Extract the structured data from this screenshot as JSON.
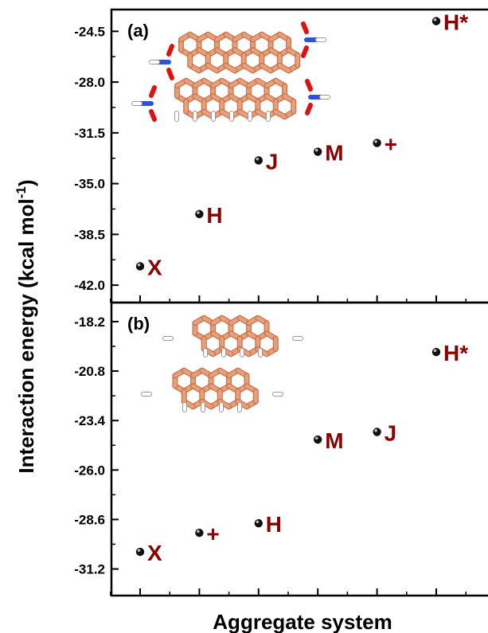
{
  "chart_data": [
    {
      "type": "scatter",
      "panel_label": "(a)",
      "ylim": [
        -43.2,
        -23.0
      ],
      "yticks": [
        "-24.5",
        "-28.0",
        "-31.5",
        "-35.0",
        "-38.5",
        "-42.0"
      ],
      "points": [
        {
          "x": 1,
          "label": "X",
          "y": -40.7
        },
        {
          "x": 2,
          "label": "H",
          "y": -37.1
        },
        {
          "x": 3,
          "label": "J",
          "y": -33.4
        },
        {
          "x": 4,
          "label": "M",
          "y": -32.8
        },
        {
          "x": 5,
          "label": "+",
          "y": -32.2
        },
        {
          "x": 6,
          "label": "H*",
          "y": -23.8
        }
      ]
    },
    {
      "type": "scatter",
      "panel_label": "(b)",
      "ylim": [
        -32.6,
        -17.2
      ],
      "yticks": [
        "-18.2",
        "-20.8",
        "-23.4",
        "-26.0",
        "-28.6",
        "-31.2"
      ],
      "points": [
        {
          "x": 1,
          "label": "X",
          "y": -30.3
        },
        {
          "x": 2,
          "label": "+",
          "y": -29.3
        },
        {
          "x": 3,
          "label": "H",
          "y": -28.8
        },
        {
          "x": 4,
          "label": "M",
          "y": -24.4
        },
        {
          "x": 5,
          "label": "J",
          "y": -24.0
        },
        {
          "x": 6,
          "label": "H*",
          "y": -19.8
        }
      ]
    }
  ],
  "y_axis_title": "Interaction energy (kcal mol",
  "y_axis_title_sup": "-1",
  "y_axis_title_close": ")",
  "x_axis_title": "Aggregate system",
  "colors": {
    "label": "#8B0000",
    "carbon": "#E8A07A",
    "carbon_dark": "#C8724A",
    "oxygen": "#E01010",
    "nitrogen": "#3050E0",
    "hydrogen": "#FFFFFF"
  }
}
